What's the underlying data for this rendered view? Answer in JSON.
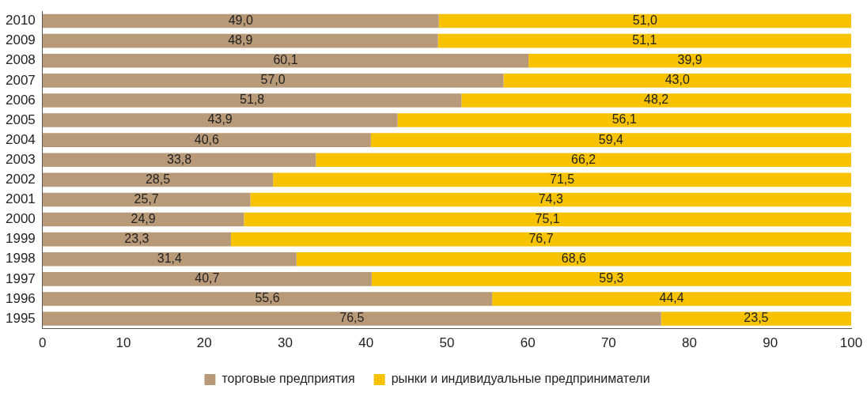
{
  "chart_data": {
    "type": "bar",
    "orientation": "horizontal",
    "stacked": true,
    "grid": false,
    "legend": "bottom",
    "categories": [
      "2010",
      "2009",
      "2008",
      "2007",
      "2006",
      "2005",
      "2004",
      "2003",
      "2002",
      "2001",
      "2000",
      "1999",
      "1998",
      "1997",
      "1996",
      "1995"
    ],
    "series": [
      {
        "name": "торговые предприятия",
        "color": "#b99a78",
        "values": [
          49.0,
          48.9,
          60.1,
          57.0,
          51.8,
          43.9,
          40.6,
          33.8,
          28.5,
          25.7,
          24.9,
          23.3,
          31.4,
          40.7,
          55.6,
          76.5
        ],
        "value_labels": [
          "49,0",
          "48,9",
          "60,1",
          "57,0",
          "51,8",
          "43,9",
          "40,6",
          "33,8",
          "28,5",
          "25,7",
          "24,9",
          "23,3",
          "31,4",
          "40,7",
          "55,6",
          "76,5"
        ]
      },
      {
        "name": "рынки и индивидуальные предприниматели",
        "color": "#f7c200",
        "values": [
          51.0,
          51.1,
          39.9,
          43.0,
          48.2,
          56.1,
          59.4,
          66.2,
          71.5,
          74.3,
          75.1,
          76.7,
          68.6,
          59.3,
          44.4,
          23.5
        ],
        "value_labels": [
          "51,0",
          "51,1",
          "39,9",
          "43,0",
          "48,2",
          "56,1",
          "59,4",
          "66,2",
          "71,5",
          "74,3",
          "75,1",
          "76,7",
          "68,6",
          "59,3",
          "44,4",
          "23,5"
        ]
      }
    ],
    "xlim": [
      0,
      100
    ],
    "xticks": [
      0,
      10,
      20,
      30,
      40,
      50,
      60,
      70,
      80,
      90,
      100
    ]
  }
}
